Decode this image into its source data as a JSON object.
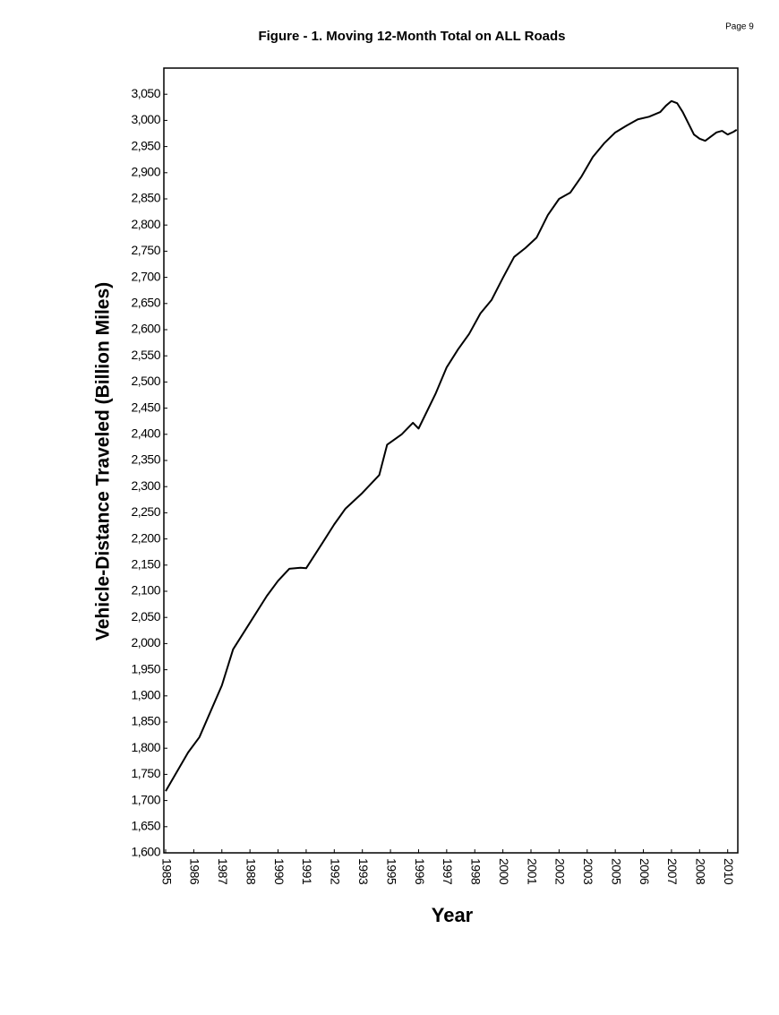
{
  "chart_data": {
    "type": "line",
    "title": "Figure - 1.  Moving 12-Month Total on ALL Roads",
    "page": "Page 9",
    "xlabel": "Year",
    "ylabel": "Vehicle-Distance Traveled (Billion Miles)",
    "x": [
      1985,
      1986,
      1986.5,
      1987.5,
      1988,
      1988.75,
      1989.5,
      1990,
      1990.5,
      1991,
      1991.25,
      1992,
      1992.5,
      1993,
      1993.75,
      1994.5,
      1994.85,
      1995.5,
      1996,
      1996.25,
      1997,
      1997.5,
      1998,
      1998.5,
      1999,
      1999.5,
      2000,
      2000.5,
      2001,
      2001.5,
      2002,
      2002.5,
      2003,
      2003.5,
      2004,
      2004.5,
      2005,
      2005.5,
      2006,
      2006.5,
      2007,
      2007.25,
      2007.5,
      2007.75,
      2008,
      2008.5,
      2008.75,
      2009,
      2009.5,
      2009.75,
      2010,
      2010.25,
      2010.4
    ],
    "series": [
      {
        "name": "Moving 12-Month Total",
        "color": "#000000",
        "values": [
          1718,
          1792,
          1821,
          1920,
          1989,
          2040,
          2091,
          2120,
          2143,
          2145,
          2144,
          2194,
          2228,
          2258,
          2288,
          2322,
          2380,
          2400,
          2422,
          2411,
          2477,
          2528,
          2562,
          2592,
          2631,
          2657,
          2699,
          2739,
          2756,
          2776,
          2819,
          2850,
          2862,
          2893,
          2930,
          2956,
          2977,
          2990,
          3002,
          3007,
          3016,
          3028,
          3037,
          3033,
          3016,
          2973,
          2965,
          2961,
          2977,
          2980,
          2973,
          2978,
          2982
        ]
      }
    ],
    "xlim": [
      1984.92,
      2010.45
    ],
    "xticks": [
      1985,
      {
        "value": 1986.25,
        "label": "1986"
      },
      {
        "value": 1987.5,
        "label": "1987"
      },
      {
        "value": 1988.75,
        "label": "1988"
      },
      1990,
      {
        "value": 1991.25,
        "label": "1991"
      },
      {
        "value": 1992.5,
        "label": "1992"
      },
      {
        "value": 1993.75,
        "label": "1993"
      },
      1995,
      {
        "value": 1996.25,
        "label": "1996"
      },
      {
        "value": 1997.5,
        "label": "1997"
      },
      {
        "value": 1998.75,
        "label": "1998"
      },
      2000,
      {
        "value": 2001.25,
        "label": "2001"
      },
      {
        "value": 2002.5,
        "label": "2002"
      },
      {
        "value": 2003.75,
        "label": "2003"
      },
      2005,
      {
        "value": 2006.25,
        "label": "2006"
      },
      {
        "value": 2007.5,
        "label": "2007"
      },
      {
        "value": 2008.75,
        "label": "2008"
      },
      2010
    ],
    "ylim": [
      1600,
      3100
    ],
    "yticks": [
      {
        "value": 1600,
        "label": "1,600"
      },
      {
        "value": 1650,
        "label": "1,650"
      },
      {
        "value": 1700,
        "label": "1,700"
      },
      {
        "value": 1750,
        "label": "1,750"
      },
      {
        "value": 1800,
        "label": "1,800"
      },
      {
        "value": 1850,
        "label": "1,850"
      },
      {
        "value": 1900,
        "label": "1,900"
      },
      {
        "value": 1950,
        "label": "1,950"
      },
      {
        "value": 2000,
        "label": "2,000"
      },
      {
        "value": 2050,
        "label": "2,050"
      },
      {
        "value": 2100,
        "label": "2,100"
      },
      {
        "value": 2150,
        "label": "2,150"
      },
      {
        "value": 2200,
        "label": "2,200"
      },
      {
        "value": 2250,
        "label": "2,250"
      },
      {
        "value": 2300,
        "label": "2,300"
      },
      {
        "value": 2350,
        "label": "2,350"
      },
      {
        "value": 2400,
        "label": "2,400"
      },
      {
        "value": 2450,
        "label": "2,450"
      },
      {
        "value": 2500,
        "label": "2,500"
      },
      {
        "value": 2550,
        "label": "2,550"
      },
      {
        "value": 2600,
        "label": "2,600"
      },
      {
        "value": 2650,
        "label": "2,650"
      },
      {
        "value": 2700,
        "label": "2,700"
      },
      {
        "value": 2750,
        "label": "2,750"
      },
      {
        "value": 2800,
        "label": "2,800"
      },
      {
        "value": 2850,
        "label": "2,850"
      },
      {
        "value": 2900,
        "label": "2,900"
      },
      {
        "value": 2950,
        "label": "2,950"
      },
      {
        "value": 3000,
        "label": "3,000"
      },
      {
        "value": 3050,
        "label": "3,050"
      }
    ],
    "grid": false
  }
}
